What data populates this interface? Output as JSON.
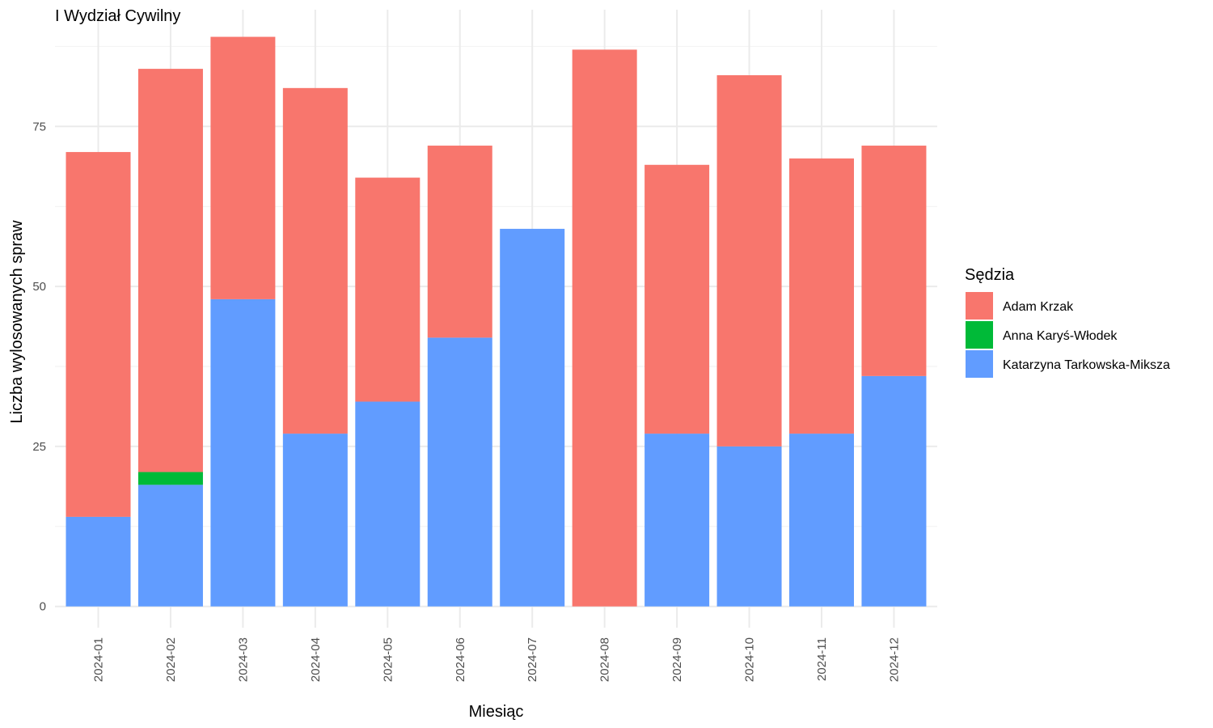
{
  "chart_data": {
    "type": "bar",
    "stacked": true,
    "title": "I Wydział Cywilny",
    "xlabel": "Miesiąc",
    "ylabel": "Liczba wylosowanych spraw",
    "ylim": [
      0,
      90
    ],
    "yticks": [
      0,
      25,
      50,
      75
    ],
    "grid": true,
    "legend_position": "right",
    "legend_title": "Sędzia",
    "categories": [
      "2024-01",
      "2024-02",
      "2024-03",
      "2024-04",
      "2024-05",
      "2024-06",
      "2024-07",
      "2024-08",
      "2024-09",
      "2024-10",
      "2024-11",
      "2024-12"
    ],
    "stack_order_bottom_to_top": [
      "Katarzyna Tarkowska-Miksza",
      "Anna Karyś-Włodek",
      "Adam Krzak"
    ],
    "series": [
      {
        "name": "Adam Krzak",
        "color": "#F8766D",
        "values": [
          57,
          63,
          41,
          54,
          35,
          30,
          0,
          87,
          42,
          58,
          43,
          36
        ]
      },
      {
        "name": "Anna Karyś-Włodek",
        "color": "#00BA38",
        "values": [
          0,
          2,
          0,
          0,
          0,
          0,
          0,
          0,
          0,
          0,
          0,
          0
        ]
      },
      {
        "name": "Katarzyna Tarkowska-Miksza",
        "color": "#619CFF",
        "values": [
          14,
          19,
          48,
          27,
          32,
          42,
          59,
          0,
          27,
          25,
          27,
          36
        ]
      }
    ]
  }
}
